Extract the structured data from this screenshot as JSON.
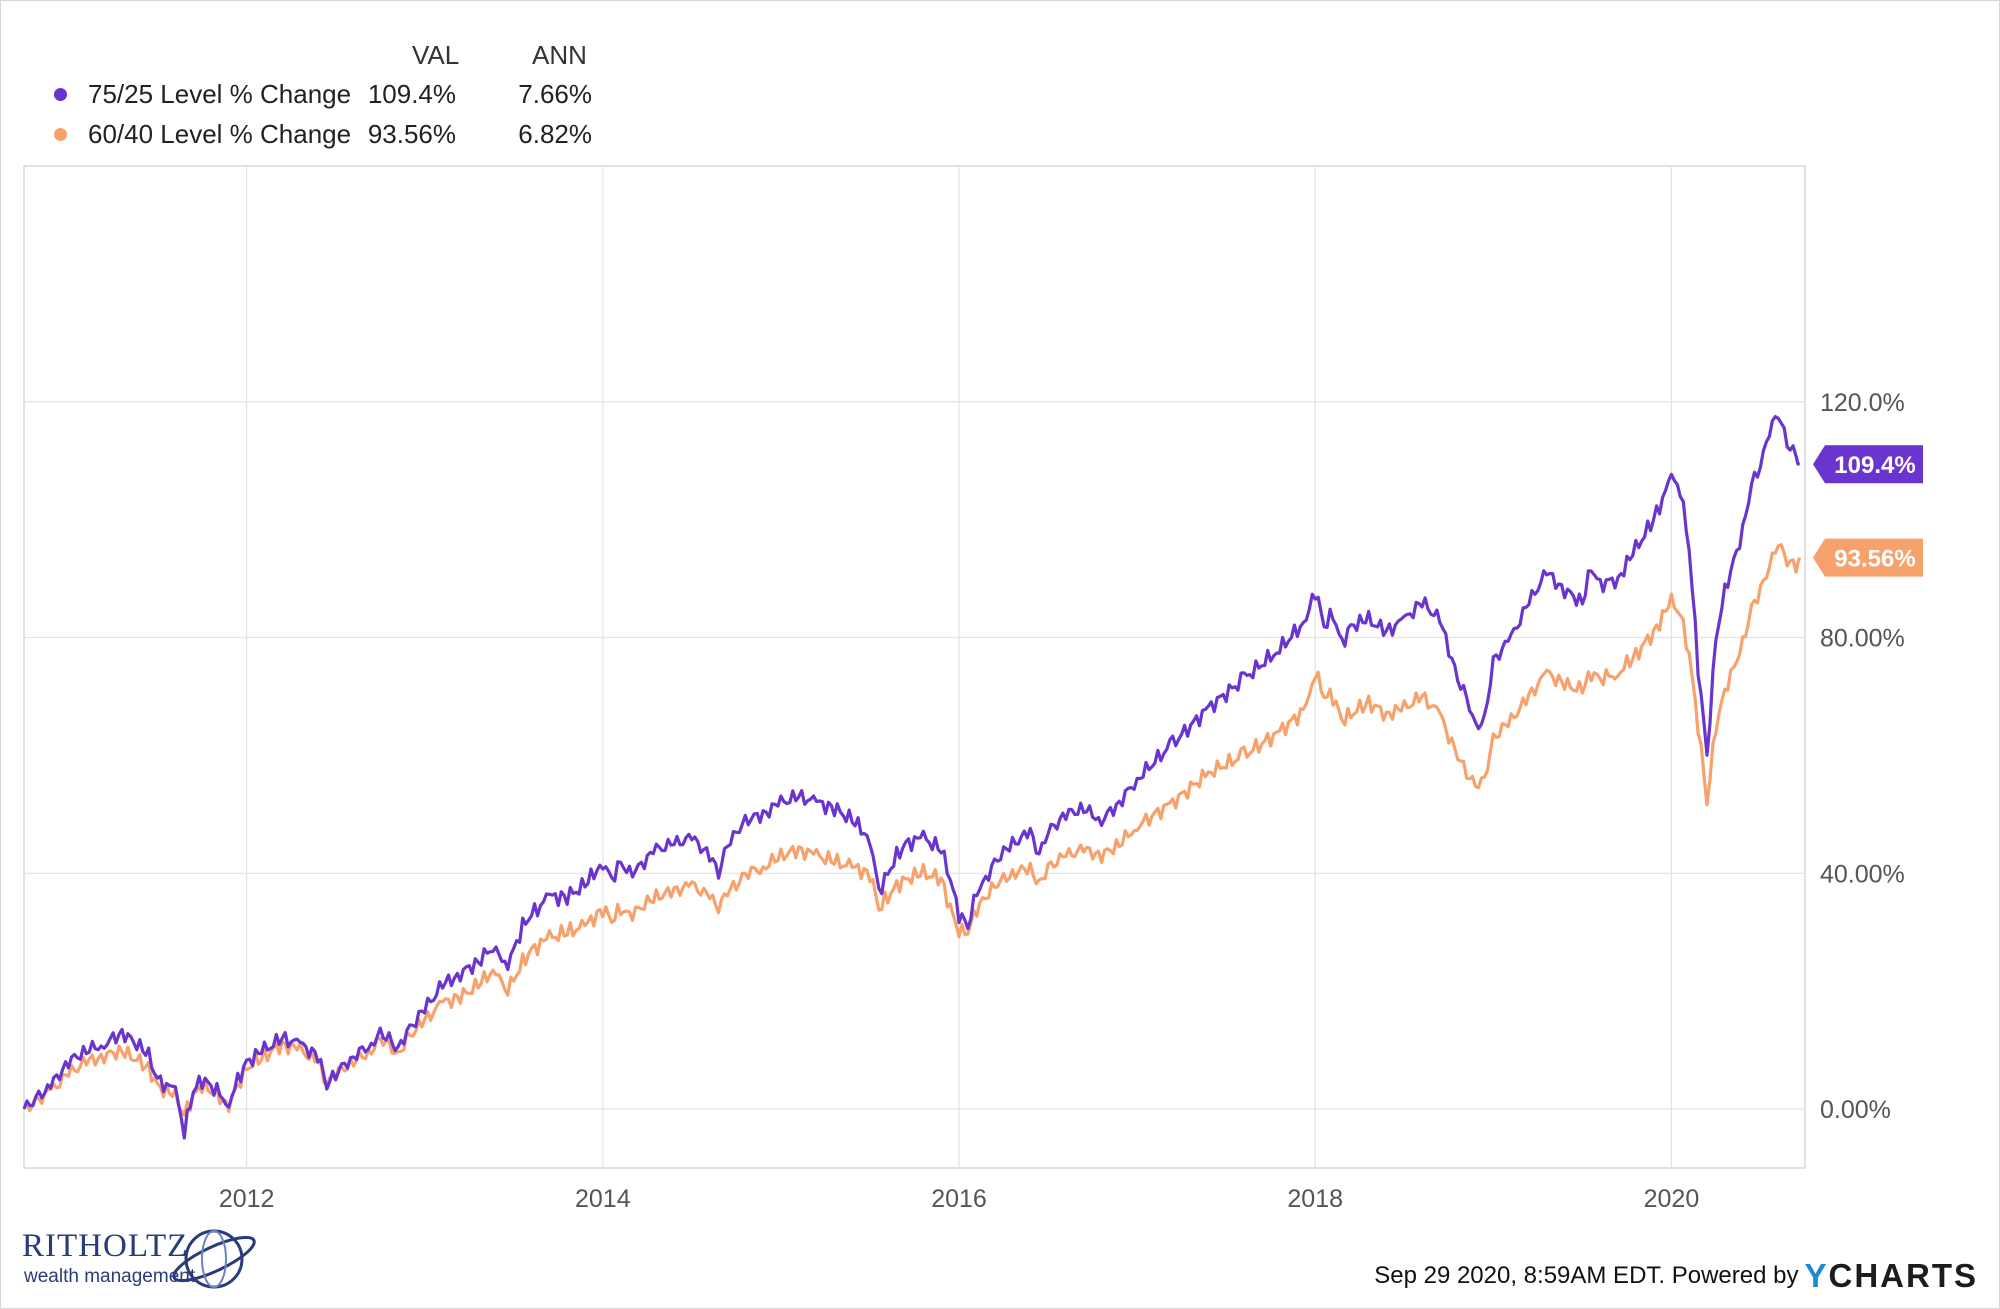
{
  "legend": {
    "col_val": "VAL",
    "col_ann": "ANN",
    "rows": [
      {
        "name": "75/25 Level % Change",
        "val": "109.4%",
        "ann": "7.66%",
        "color": "#6a35cf"
      },
      {
        "name": "60/40 Level % Change",
        "val": "93.56%",
        "ann": "6.82%",
        "color": "#f7a26d"
      }
    ]
  },
  "chart_data": {
    "type": "line",
    "title": "",
    "xlabel": "",
    "ylabel": "",
    "x_ticks": [
      "2012",
      "2014",
      "2016",
      "2018",
      "2020"
    ],
    "y_ticks": [
      "0.00%",
      "40.00%",
      "80.00%",
      "120.0%"
    ],
    "y_tick_values": [
      0,
      40,
      80,
      120
    ],
    "xlim": [
      2010.75,
      2020.75
    ],
    "ylim": [
      -10,
      160
    ],
    "grid": true,
    "legend_position": "top-left",
    "series": [
      {
        "name": "75/25 Level % Change",
        "color": "#6a35cf",
        "end_label": "109.4%",
        "x": [
          2010.75,
          2010.9,
          2011.0,
          2011.1,
          2011.2,
          2011.3,
          2011.35,
          2011.45,
          2011.5,
          2011.6,
          2011.65,
          2011.7,
          2011.75,
          2011.8,
          2011.9,
          2011.95,
          2012.0,
          2012.1,
          2012.2,
          2012.3,
          2012.4,
          2012.45,
          2012.5,
          2012.6,
          2012.7,
          2012.75,
          2012.8,
          2012.85,
          2012.9,
          2013.0,
          2013.1,
          2013.2,
          2013.3,
          2013.4,
          2013.45,
          2013.5,
          2013.55,
          2013.6,
          2013.7,
          2013.8,
          2013.9,
          2014.0,
          2014.05,
          2014.1,
          2014.15,
          2014.2,
          2014.3,
          2014.4,
          2014.5,
          2014.6,
          2014.65,
          2014.7,
          2014.75,
          2014.8,
          2014.9,
          2015.0,
          2015.1,
          2015.2,
          2015.3,
          2015.4,
          2015.5,
          2015.55,
          2015.6,
          2015.65,
          2015.7,
          2015.8,
          2015.9,
          2015.95,
          2016.0,
          2016.05,
          2016.1,
          2016.15,
          2016.2,
          2016.3,
          2016.4,
          2016.45,
          2016.5,
          2016.6,
          2016.7,
          2016.8,
          2016.9,
          2017.0,
          2017.2,
          2017.4,
          2017.6,
          2017.8,
          2017.95,
          2018.0,
          2018.05,
          2018.1,
          2018.15,
          2018.2,
          2018.3,
          2018.4,
          2018.5,
          2018.6,
          2018.7,
          2018.75,
          2018.8,
          2018.85,
          2018.9,
          2018.95,
          2019.0,
          2019.1,
          2019.2,
          2019.3,
          2019.4,
          2019.5,
          2019.55,
          2019.6,
          2019.7,
          2019.8,
          2019.9,
          2020.0,
          2020.05,
          2020.1,
          2020.15,
          2020.2,
          2020.25,
          2020.3,
          2020.35,
          2020.4,
          2020.45,
          2020.5,
          2020.55,
          2020.6,
          2020.65,
          2020.7,
          2020.72
        ],
        "y": [
          0,
          4,
          8,
          10,
          11,
          13,
          12,
          9,
          5,
          3,
          -4,
          3,
          5,
          4,
          1,
          5,
          8,
          10,
          12,
          11,
          9,
          4,
          6,
          9,
          11,
          13,
          12,
          10,
          13,
          17,
          21,
          23,
          25,
          28,
          24,
          27,
          31,
          33,
          36,
          36,
          38,
          42,
          39,
          42,
          40,
          41,
          44,
          45,
          46,
          43,
          40,
          45,
          47,
          49,
          50,
          52,
          53,
          52,
          51,
          49,
          46,
          37,
          40,
          43,
          45,
          46,
          44,
          39,
          33,
          31,
          37,
          39,
          42,
          45,
          47,
          43,
          47,
          50,
          51,
          49,
          52,
          56,
          62,
          68,
          73,
          78,
          83,
          88,
          82,
          84,
          79,
          82,
          83,
          81,
          83,
          86,
          83,
          78,
          73,
          70,
          65,
          66,
          76,
          80,
          86,
          91,
          88,
          86,
          92,
          89,
          90,
          95,
          100,
          107,
          105,
          95,
          75,
          60,
          80,
          88,
          93,
          98,
          106,
          109,
          115,
          118,
          113,
          111,
          109.4
        ],
        "y_smooth": true
      },
      {
        "name": "60/40 Level % Change",
        "color": "#f7a26d",
        "end_label": "93.56%",
        "x": [
          2010.75,
          2010.9,
          2011.0,
          2011.1,
          2011.2,
          2011.3,
          2011.35,
          2011.45,
          2011.5,
          2011.6,
          2011.65,
          2011.7,
          2011.75,
          2011.8,
          2011.9,
          2011.95,
          2012.0,
          2012.1,
          2012.2,
          2012.3,
          2012.4,
          2012.45,
          2012.5,
          2012.6,
          2012.7,
          2012.75,
          2012.8,
          2012.85,
          2012.9,
          2013.0,
          2013.1,
          2013.2,
          2013.3,
          2013.4,
          2013.45,
          2013.5,
          2013.55,
          2013.6,
          2013.7,
          2013.8,
          2013.9,
          2014.0,
          2014.05,
          2014.1,
          2014.15,
          2014.2,
          2014.3,
          2014.4,
          2014.5,
          2014.6,
          2014.65,
          2014.7,
          2014.75,
          2014.8,
          2014.9,
          2015.0,
          2015.1,
          2015.2,
          2015.3,
          2015.4,
          2015.5,
          2015.55,
          2015.6,
          2015.65,
          2015.7,
          2015.8,
          2015.9,
          2015.95,
          2016.0,
          2016.05,
          2016.1,
          2016.15,
          2016.2,
          2016.3,
          2016.4,
          2016.45,
          2016.5,
          2016.6,
          2016.7,
          2016.8,
          2016.9,
          2017.0,
          2017.2,
          2017.4,
          2017.6,
          2017.8,
          2017.95,
          2018.0,
          2018.05,
          2018.1,
          2018.15,
          2018.2,
          2018.3,
          2018.4,
          2018.5,
          2018.6,
          2018.7,
          2018.75,
          2018.8,
          2018.85,
          2018.9,
          2018.95,
          2019.0,
          2019.1,
          2019.2,
          2019.3,
          2019.4,
          2019.5,
          2019.55,
          2019.6,
          2019.7,
          2019.8,
          2019.9,
          2020.0,
          2020.05,
          2020.1,
          2020.15,
          2020.2,
          2020.25,
          2020.3,
          2020.35,
          2020.4,
          2020.45,
          2020.5,
          2020.55,
          2020.6,
          2020.65,
          2020.7,
          2020.72
        ],
        "y": [
          0,
          3,
          6,
          8,
          9,
          10,
          9,
          7,
          4,
          2,
          -1,
          2,
          4,
          3,
          1,
          4,
          7,
          9,
          11,
          10,
          8,
          4,
          6,
          8,
          10,
          12,
          11,
          9,
          12,
          15,
          18,
          19,
          21,
          24,
          20,
          22,
          25,
          27,
          29,
          30,
          31,
          34,
          32,
          34,
          33,
          34,
          36,
          37,
          38,
          36,
          34,
          37,
          38,
          40,
          41,
          43,
          44,
          43,
          42,
          41,
          40,
          34,
          36,
          38,
          39,
          40,
          39,
          34,
          30,
          30,
          34,
          36,
          38,
          40,
          41,
          38,
          41,
          43,
          44,
          43,
          45,
          48,
          52,
          57,
          60,
          64,
          68,
          74,
          70,
          70,
          66,
          67,
          69,
          67,
          68,
          70,
          67,
          63,
          60,
          57,
          55,
          56,
          63,
          66,
          70,
          74,
          72,
          71,
          74,
          73,
          74,
          77,
          81,
          86,
          84,
          77,
          65,
          52,
          65,
          71,
          75,
          79,
          85,
          88,
          92,
          96,
          93,
          92,
          93.56
        ],
        "y_smooth": true
      }
    ]
  },
  "footer": {
    "timestamp": "Sep 29 2020, 8:59AM EDT. Powered by",
    "brand_y": "Y",
    "brand_rest": "CHARTS"
  },
  "logo": {
    "brand": "RITHOLTZ",
    "sub": "wealth management"
  }
}
